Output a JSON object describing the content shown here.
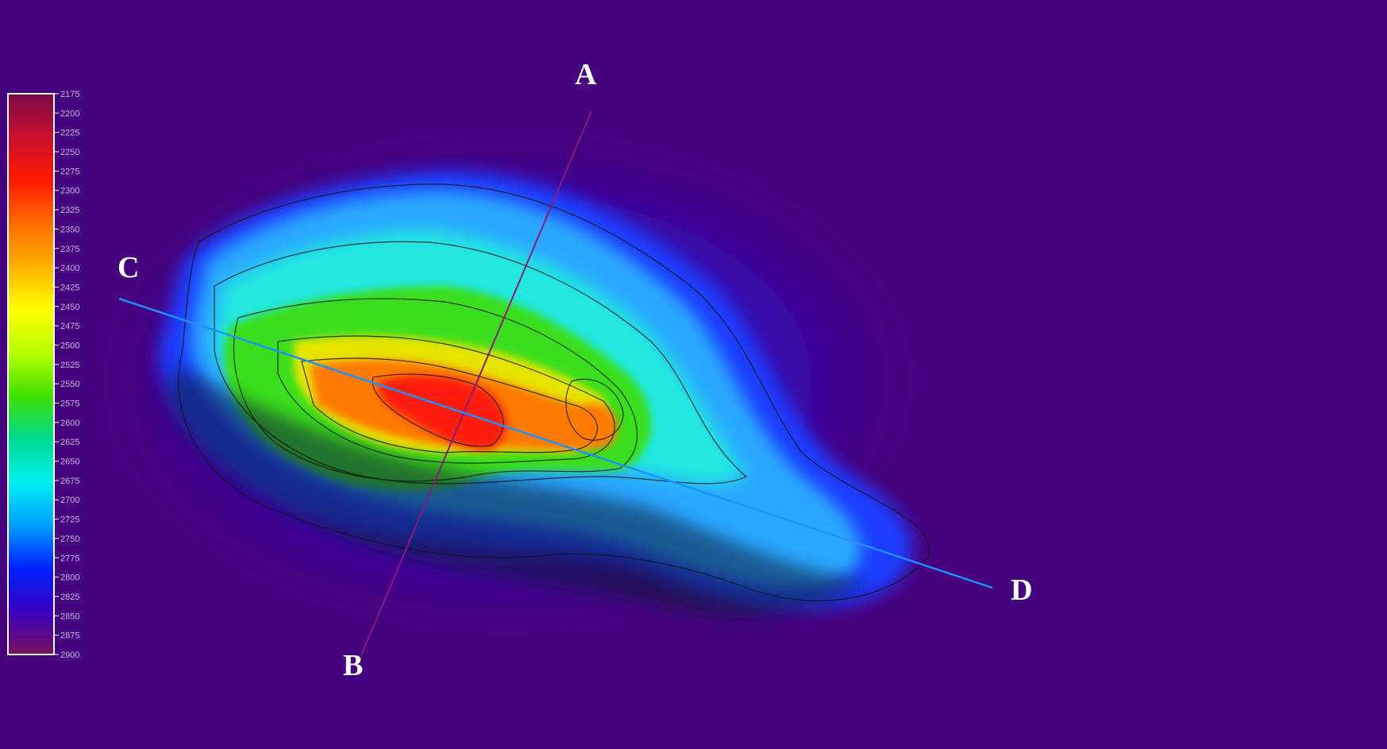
{
  "map": {
    "type": "bathymetric shaded-relief map",
    "background_color": "#46037f"
  },
  "colorbar": {
    "ticks": [
      "2175",
      "2200",
      "2225",
      "2250",
      "2275",
      "2300",
      "2325",
      "2350",
      "2375",
      "2400",
      "2425",
      "2450",
      "2475",
      "2500",
      "2525",
      "2550",
      "2575",
      "2600",
      "2625",
      "2650",
      "2675",
      "2700",
      "2725",
      "2750",
      "2775",
      "2800",
      "2825",
      "2850",
      "2875",
      "2900"
    ],
    "stops": [
      "#7a0a4a",
      "#c8102e",
      "#ff1a00",
      "#ff6a00",
      "#ffb000",
      "#ffff00",
      "#b8ff00",
      "#40e000",
      "#00d890",
      "#00f0f0",
      "#00a0ff",
      "#0020ff",
      "#3a00c0",
      "#7a1060"
    ]
  },
  "profiles": [
    {
      "id": "AB",
      "start_label": "A",
      "end_label": "B",
      "color": "#8a1a7a"
    },
    {
      "id": "CD",
      "start_label": "C",
      "end_label": "D",
      "color": "#1e90ff"
    }
  ]
}
